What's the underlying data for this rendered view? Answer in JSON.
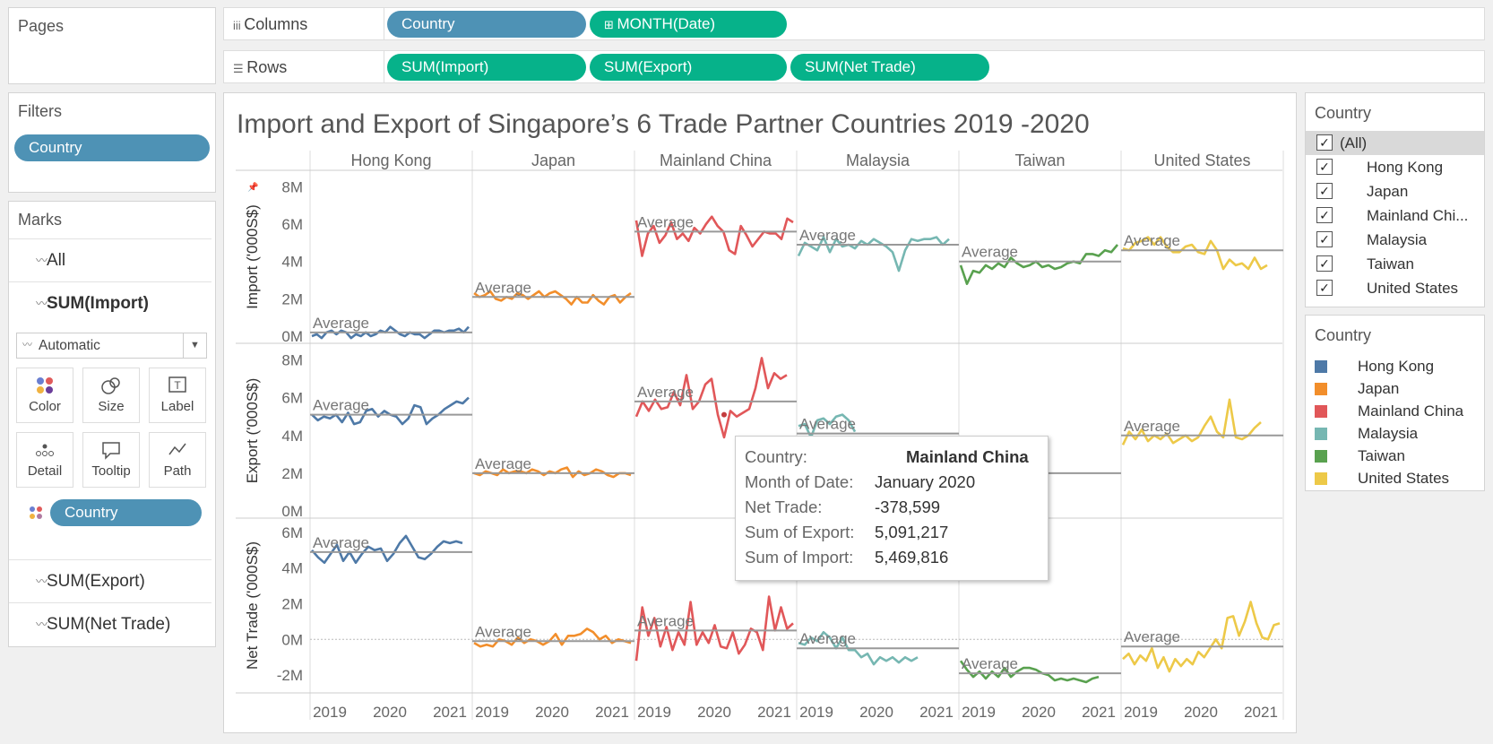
{
  "pages": {
    "label": "Pages"
  },
  "filters": {
    "label": "Filters",
    "pill": "Country"
  },
  "marks": {
    "label": "Marks",
    "rows": [
      "All",
      "SUM(Import)"
    ],
    "mark_type": "Automatic",
    "cards": [
      {
        "label": "Color",
        "icon": "color-icon"
      },
      {
        "label": "Size",
        "icon": "size-icon"
      },
      {
        "label": "Label",
        "icon": "label-icon"
      },
      {
        "label": "Detail",
        "icon": "detail-icon"
      },
      {
        "label": "Tooltip",
        "icon": "tooltip-icon"
      },
      {
        "label": "Path",
        "icon": "path-icon"
      }
    ],
    "color_pill": "Country",
    "extra_rows": [
      "SUM(Export)",
      "SUM(Net Trade)"
    ]
  },
  "columns_shelf": {
    "label": "Columns",
    "pills": [
      "Country",
      "MONTH(Date)"
    ]
  },
  "rows_shelf": {
    "label": "Rows",
    "pills": [
      "SUM(Import)",
      "SUM(Export)",
      "SUM(Net Trade)"
    ]
  },
  "filter_card": {
    "title": "Country",
    "items": [
      "(All)",
      "Hong Kong",
      "Japan",
      "Mainland Chi...",
      "Malaysia",
      "Taiwan",
      "United States"
    ]
  },
  "legend_card": {
    "title": "Country",
    "items": [
      "Hong Kong",
      "Japan",
      "Mainland China",
      "Malaysia",
      "Taiwan",
      "United States"
    ]
  },
  "tooltip": {
    "country_k": "Country:",
    "country_v": "Mainland China",
    "month_k": "Month of Date:",
    "month_v": "January 2020",
    "net_k": "Net Trade:",
    "net_v": "-378,599",
    "exp_k": "Sum of Export:",
    "exp_v": "5,091,217",
    "imp_k": "Sum of Import:",
    "imp_v": "5,469,816"
  },
  "chart_data": {
    "type": "line",
    "title": "Import and Export of Singapore’s 6  Trade Partner Countries 2019 -2020",
    "panes": [
      "Hong Kong",
      "Japan",
      "Mainland China",
      "Malaysia",
      "Taiwan",
      "United States"
    ],
    "colors": [
      "#4e79a7",
      "#f28e2b",
      "#e15759",
      "#76b7b2",
      "#59a14f",
      "#edc948"
    ],
    "x_ticks": [
      "2019",
      "2020",
      "2021"
    ],
    "average_label": "Average",
    "rows": [
      {
        "ylabel": "Import ('000S$)",
        "ylim": [
          0,
          8.5
        ],
        "ticks": [
          0,
          2,
          4,
          6,
          8
        ],
        "tick_labels": [
          "0M",
          "2M",
          "4M",
          "6M",
          "8M"
        ],
        "averages": [
          0.2,
          2.1,
          5.6,
          4.9,
          4.0,
          4.6
        ],
        "series": [
          [
            0,
            0.1,
            -0.1,
            0.2,
            0.3,
            0.1,
            0.3,
            0.2,
            -0.1,
            0.1,
            0,
            0.2,
            0,
            0.1,
            0.3,
            0.2,
            0.5,
            0.3,
            0.1,
            0,
            0.2,
            0.1,
            0.1,
            -0.1,
            0.1,
            0.3,
            0.3,
            0.2,
            0.3,
            0.3,
            0.4,
            0.2,
            0.5
          ],
          [
            2.3,
            2.1,
            2.2,
            2.4,
            2.0,
            1.9,
            2.1,
            2.0,
            2.3,
            2.2,
            2.0,
            2.2,
            2.4,
            2.1,
            2.3,
            2.4,
            2.2,
            2.0,
            1.7,
            2.1,
            1.8,
            1.8,
            2.2,
            1.9,
            1.7,
            2.1,
            2.2,
            1.8,
            2.1,
            2.3
          ],
          [
            6.2,
            4.3,
            5.5,
            5.9,
            5.0,
            5.4,
            6.1,
            5.2,
            5.5,
            5.1,
            5.8,
            5.5,
            6.0,
            6.4,
            5.9,
            5.6,
            4.6,
            4.4,
            5.9,
            5.4,
            4.8,
            5.2,
            5.6,
            5.5,
            5.5,
            5.2,
            6.3,
            6.1
          ],
          [
            4.3,
            5.0,
            4.8,
            4.6,
            5.3,
            4.5,
            5.2,
            4.8,
            4.9,
            4.7,
            5.1,
            4.9,
            5.2,
            5.0,
            4.8,
            4.5,
            3.5,
            4.6,
            5.2,
            5.1,
            5.2,
            5.2,
            5.3,
            4.9,
            5.2
          ],
          [
            3.8,
            2.8,
            3.5,
            3.4,
            3.8,
            3.6,
            3.9,
            3.7,
            4.2,
            3.9,
            3.7,
            3.8,
            4.0,
            3.7,
            3.8,
            3.6,
            3.7,
            3.9,
            4.0,
            3.9,
            4.4,
            4.4,
            4.3,
            4.6,
            4.5,
            4.9
          ],
          [
            4.7,
            4.6,
            5.0,
            5.1,
            5.3,
            4.9,
            5.3,
            4.8,
            4.5,
            4.5,
            4.8,
            4.9,
            4.5,
            4.4,
            5.1,
            4.6,
            3.6,
            4.1,
            3.8,
            3.9,
            3.6,
            4.2,
            3.6,
            3.8
          ]
        ]
      },
      {
        "ylabel": "Export ('000S$)",
        "ylim": [
          0,
          8.5
        ],
        "ticks": [
          0,
          2,
          4,
          6,
          8
        ],
        "tick_labels": [
          "0M",
          "2M",
          "4M",
          "6M",
          "8M"
        ],
        "averages": [
          5.1,
          2.0,
          5.8,
          4.1,
          2.0,
          4.0
        ],
        "series": [
          [
            5.1,
            4.8,
            5.0,
            4.9,
            5.1,
            4.7,
            5.2,
            4.6,
            4.7,
            5.3,
            5.4,
            5.0,
            5.3,
            5.1,
            5.0,
            4.6,
            4.9,
            5.6,
            5.5,
            4.6,
            4.9,
            5.1,
            5.4,
            5.6,
            5.8,
            5.7,
            6.0
          ],
          [
            2.0,
            1.9,
            2.1,
            2.0,
            1.9,
            2.2,
            2.0,
            2.1,
            2.1,
            2.0,
            2.2,
            2.1,
            1.9,
            2.1,
            2.0,
            2.2,
            2.3,
            1.8,
            2.1,
            1.9,
            2.0,
            2.2,
            2.1,
            1.9,
            1.8,
            2.0,
            2.0,
            1.9
          ],
          [
            5.0,
            5.8,
            5.3,
            5.9,
            5.4,
            5.5,
            6.3,
            5.6,
            7.2,
            5.4,
            5.8,
            6.7,
            7.0,
            5.1,
            3.9,
            5.3,
            5.0,
            5.2,
            5.4,
            6.5,
            8.1,
            6.5,
            7.3,
            7.0,
            7.2
          ],
          [
            4.5,
            4.6,
            3.9,
            4.8,
            4.9,
            4.6,
            5.0,
            5.1,
            4.8,
            4.2
          ],
          [
            2.0,
            2.1,
            1.8,
            2.0,
            2.2,
            1.9,
            2.0,
            2.1,
            2.0,
            2.4,
            2.8
          ],
          [
            3.5,
            4.2,
            3.8,
            4.3,
            3.7,
            4.0,
            3.8,
            4.1,
            3.6,
            3.8,
            4.0,
            3.7,
            3.9,
            4.5,
            5.0,
            4.2,
            3.9,
            5.9,
            3.9,
            3.8,
            4.0,
            4.4,
            4.7
          ]
        ]
      },
      {
        "ylabel": "Net Trade ('000S$)",
        "ylim": [
          -2.6,
          6.4
        ],
        "ticks": [
          -2,
          0,
          2,
          4,
          6
        ],
        "tick_labels": [
          "-2M",
          "0M",
          "2M",
          "4M",
          "6M"
        ],
        "averages": [
          4.9,
          -0.1,
          0.5,
          -0.5,
          -1.9,
          -0.4
        ],
        "series": [
          [
            5.0,
            4.6,
            4.3,
            4.8,
            5.3,
            4.4,
            4.9,
            4.3,
            4.8,
            5.2,
            5.0,
            5.1,
            4.4,
            4.8,
            5.4,
            5.8,
            5.2,
            4.6,
            4.5,
            4.8,
            5.2,
            5.5,
            5.4,
            5.5,
            5.4
          ],
          [
            -0.2,
            -0.4,
            -0.3,
            -0.4,
            0,
            -0.1,
            -0.3,
            0.1,
            -0.2,
            0,
            -0.1,
            -0.3,
            -0.1,
            0.3,
            -0.3,
            0.2,
            0.2,
            0.3,
            0.6,
            0.4,
            0,
            0.2,
            -0.2,
            0,
            -0.1,
            -0.2
          ],
          [
            -1.2,
            1.8,
            0.2,
            1.2,
            -0.4,
            0.7,
            -0.6,
            0.4,
            -0.3,
            2.1,
            -0.3,
            0.4,
            -0.2,
            0.8,
            -0.4,
            -0.5,
            0.4,
            -0.8,
            -0.3,
            0.6,
            0.4,
            -0.6,
            2.4,
            0.5,
            1.8,
            0.6,
            0.9
          ],
          [
            -0.2,
            -0.3,
            0.1,
            -0.1,
            0.4,
            0.1,
            -0.5,
            0.1,
            -0.6,
            -0.6,
            -1.0,
            -0.8,
            -1.4,
            -1.0,
            -1.2,
            -1.0,
            -1.3,
            -1.0,
            -1.2,
            -1.0
          ],
          [
            -1.2,
            -1.7,
            -2.1,
            -1.8,
            -2.2,
            -1.8,
            -2.1,
            -1.6,
            -2.1,
            -1.8,
            -1.6,
            -1.6,
            -1.7,
            -1.9,
            -2.0,
            -2.3,
            -2.2,
            -2.3,
            -2.2,
            -2.3,
            -2.4,
            -2.2,
            -2.1
          ],
          [
            -1.1,
            -0.8,
            -1.4,
            -0.9,
            -1.2,
            -0.5,
            -1.6,
            -1.0,
            -1.8,
            -1.1,
            -1.5,
            -1.1,
            -1.4,
            -0.7,
            -1.0,
            -0.5,
            0,
            -0.5,
            1.2,
            1.3,
            0.2,
            1.0,
            2.1,
            0.9,
            0.1,
            0,
            0.8,
            0.9
          ]
        ]
      }
    ]
  }
}
